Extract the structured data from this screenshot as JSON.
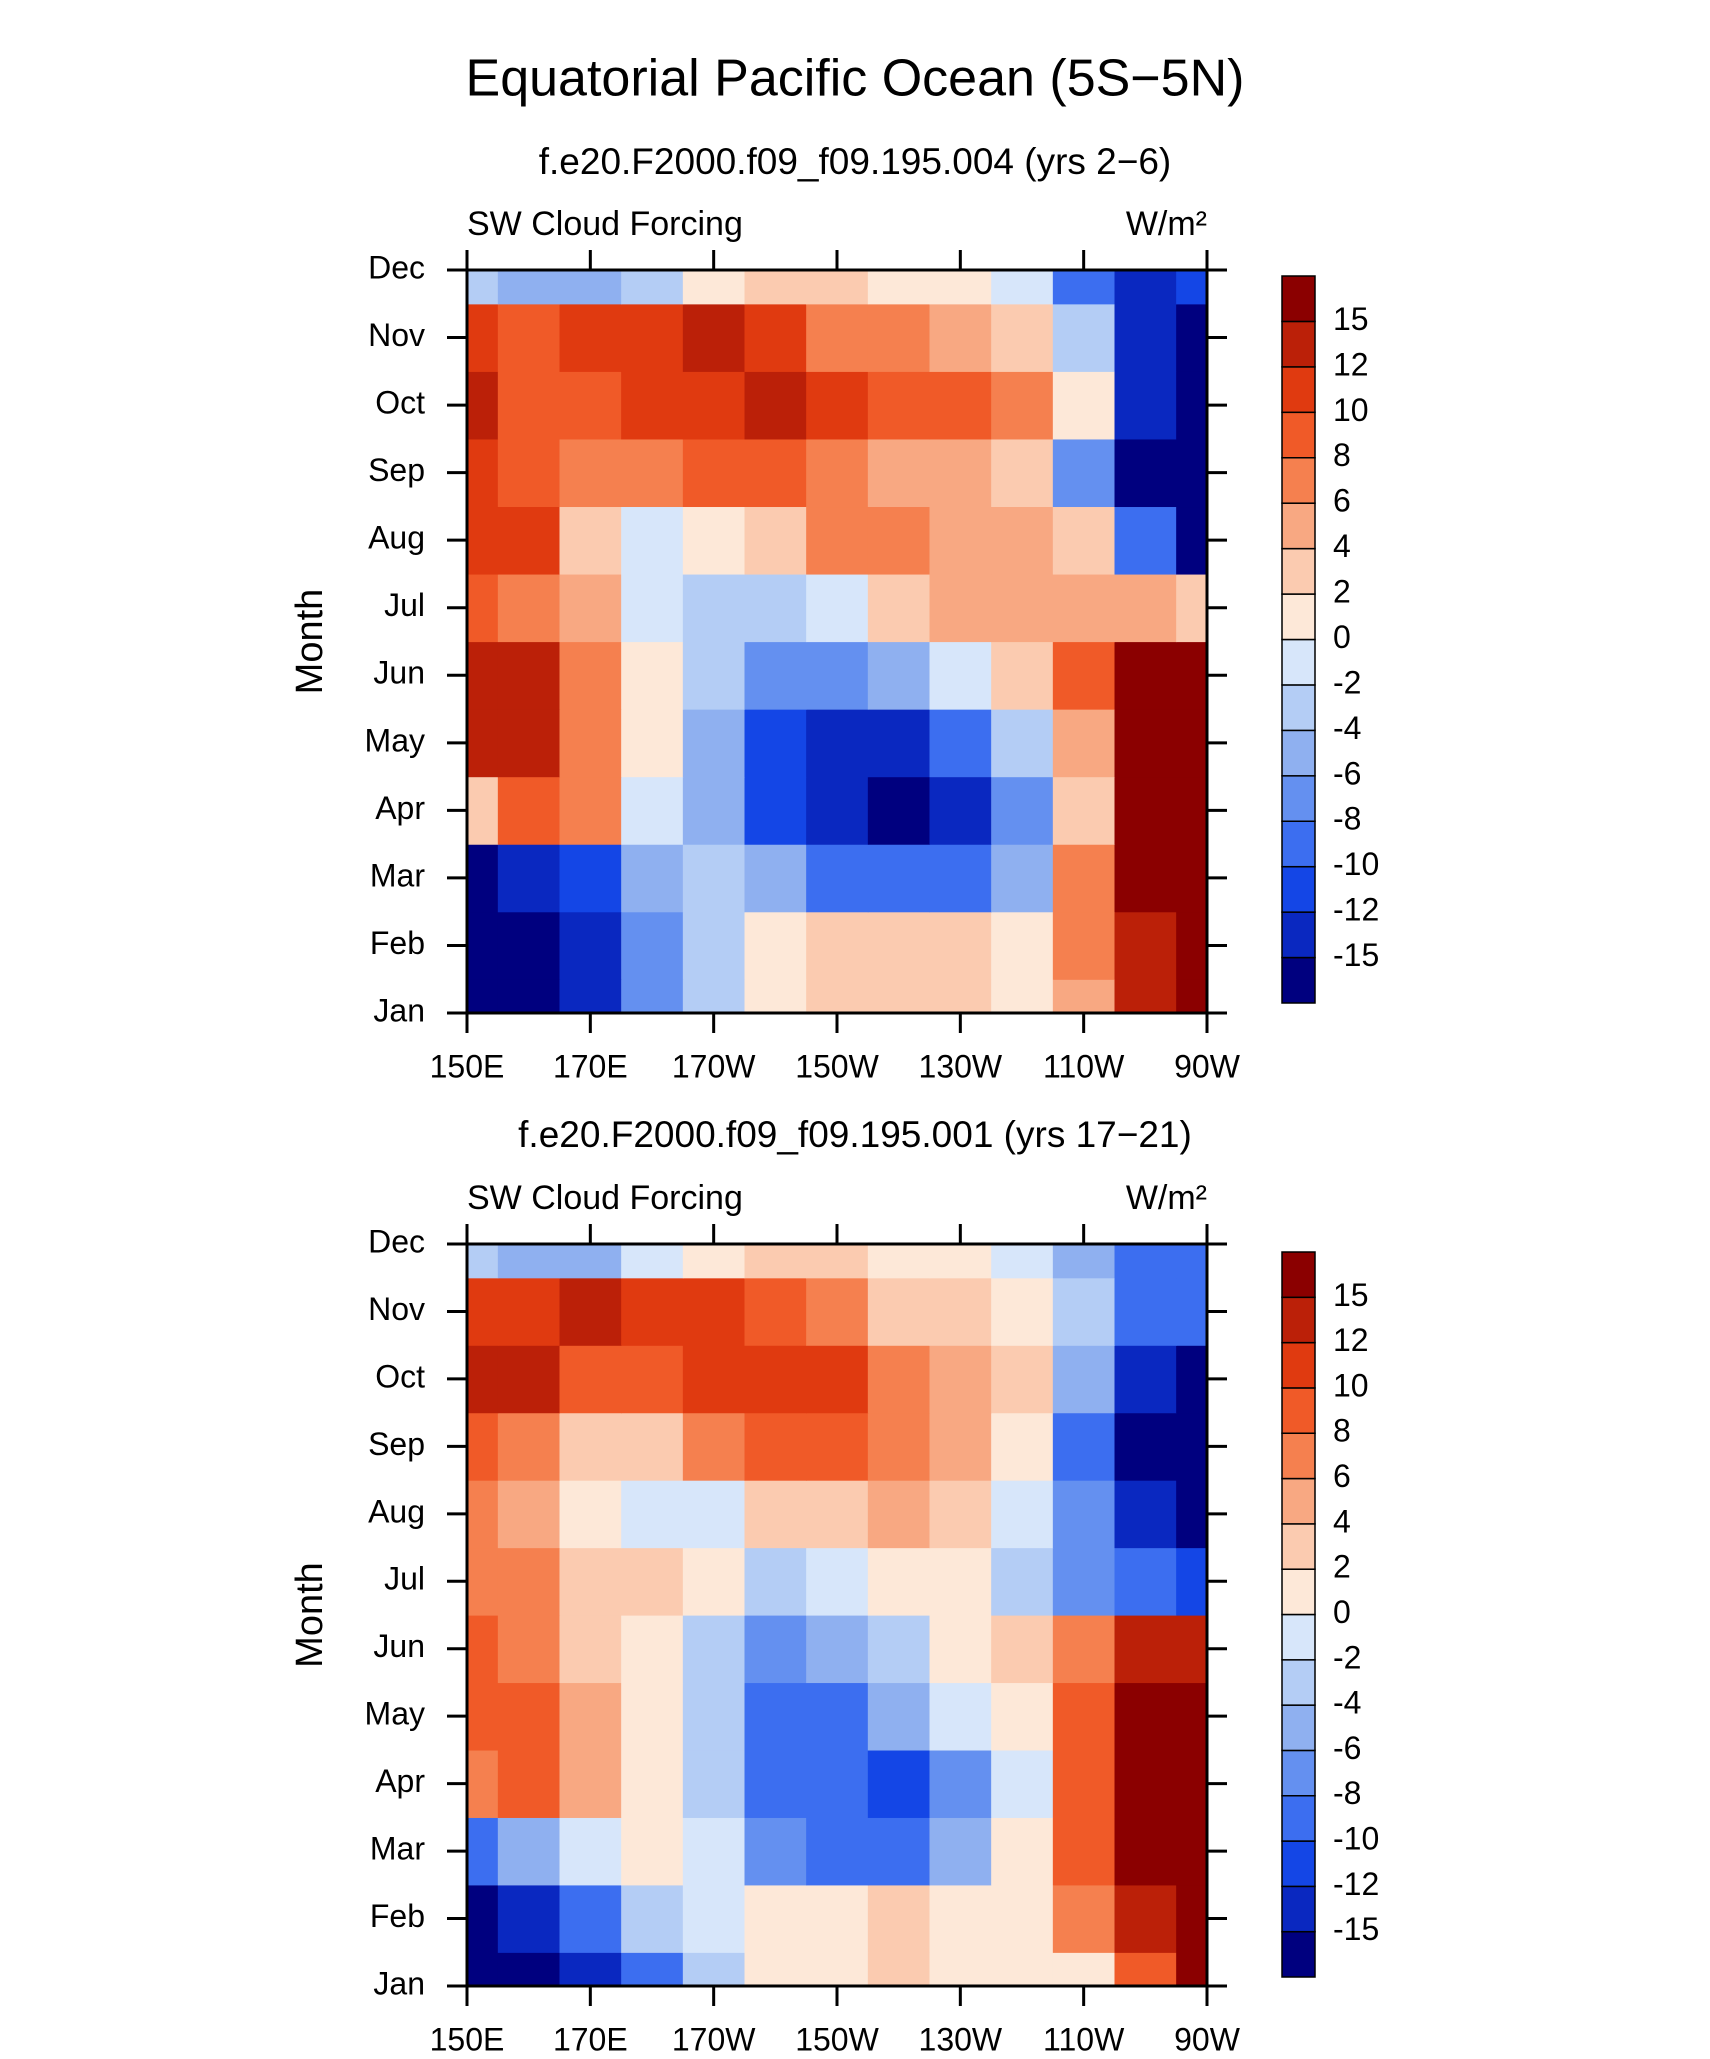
{
  "title": "Equatorial Pacific Ocean (5S−5N)",
  "chart_data": [
    {
      "type": "heatmap",
      "subtitle": "f.e20.F2000.f09_f09.195.004 (yrs 2−6)",
      "left_label": "SW Cloud Forcing",
      "right_label": "W/m²",
      "ylabel": "Month",
      "categories": [
        "Jan",
        "Feb",
        "Mar",
        "Apr",
        "May",
        "Jun",
        "Jul",
        "Aug",
        "Sep",
        "Oct",
        "Nov",
        "Dec"
      ],
      "x": [
        150,
        160,
        170,
        180,
        190,
        200,
        210,
        220,
        230,
        240,
        250,
        260,
        270
      ],
      "xlim": [
        150,
        270
      ],
      "xticks": [
        {
          "value": 150,
          "label": "150E"
        },
        {
          "value": 170,
          "label": "170E"
        },
        {
          "value": 190,
          "label": "170W"
        },
        {
          "value": 210,
          "label": "150W"
        },
        {
          "value": 230,
          "label": "130W"
        },
        {
          "value": 250,
          "label": "110W"
        },
        {
          "value": 270,
          "label": "90W"
        }
      ],
      "levels": [
        -15,
        -12,
        -10,
        -8,
        -6,
        -4,
        -2,
        0,
        2,
        4,
        6,
        8,
        10,
        12,
        15
      ],
      "colors": [
        "#00007f",
        "#0a28c0",
        "#1446e6",
        "#3c6ef0",
        "#6490f0",
        "#8fb0f0",
        "#b4cdf5",
        "#d7e6fa",
        "#fde8d8",
        "#fbcbb0",
        "#f8a882",
        "#f5804f",
        "#f05a28",
        "#e03a10",
        "#bb2008",
        "#8b0000"
      ],
      "z": [
        [
          -16,
          -16,
          -14,
          -8,
          -4,
          1,
          2,
          3,
          2,
          1,
          4,
          12,
          16
        ],
        [
          -16,
          -16,
          -13,
          -8,
          -4,
          1,
          2,
          3,
          2,
          1,
          6,
          14,
          16
        ],
        [
          -16,
          -15,
          -11,
          -5,
          -3,
          -6,
          -9,
          -10,
          -10,
          -6,
          6,
          16,
          16
        ],
        [
          2,
          8,
          6,
          -1,
          -5,
          -12,
          -14,
          -16,
          -13,
          -8,
          3,
          16,
          16
        ],
        [
          12,
          12,
          6,
          0,
          -5,
          -12,
          -14,
          -13,
          -9,
          -3,
          4,
          16,
          16
        ],
        [
          13,
          12,
          6,
          1,
          -4,
          -8,
          -8,
          -5,
          -2,
          3,
          9,
          15,
          16
        ],
        [
          8,
          6,
          4,
          -1,
          -3,
          -3,
          -1,
          2,
          4,
          4,
          5,
          4,
          3
        ],
        [
          11,
          10,
          3,
          -1,
          1,
          3,
          6,
          6,
          4,
          4,
          2,
          -10,
          -16
        ],
        [
          10,
          9,
          6,
          6,
          8,
          8,
          7,
          5,
          4,
          2,
          -8,
          -16,
          -16
        ],
        [
          14,
          8,
          9,
          10,
          10,
          12,
          10,
          9,
          8,
          6,
          0,
          -14,
          -16
        ],
        [
          10,
          9,
          10,
          11,
          12,
          10,
          7,
          6,
          5,
          3,
          -4,
          -14,
          -16
        ],
        [
          -3,
          -5,
          -6,
          -3,
          1,
          2,
          2,
          1,
          0,
          -2,
          -10,
          -14,
          -12
        ]
      ]
    },
    {
      "type": "heatmap",
      "subtitle": "f.e20.F2000.f09_f09.195.001 (yrs 17−21)",
      "left_label": "SW Cloud Forcing",
      "right_label": "W/m²",
      "ylabel": "Month",
      "categories": [
        "Jan",
        "Feb",
        "Mar",
        "Apr",
        "May",
        "Jun",
        "Jul",
        "Aug",
        "Sep",
        "Oct",
        "Nov",
        "Dec"
      ],
      "x": [
        150,
        160,
        170,
        180,
        190,
        200,
        210,
        220,
        230,
        240,
        250,
        260,
        270
      ],
      "xlim": [
        150,
        270
      ],
      "xticks": [
        {
          "value": 150,
          "label": "150E"
        },
        {
          "value": 170,
          "label": "170E"
        },
        {
          "value": 190,
          "label": "170W"
        },
        {
          "value": 210,
          "label": "150W"
        },
        {
          "value": 230,
          "label": "130W"
        },
        {
          "value": 250,
          "label": "110W"
        },
        {
          "value": 270,
          "label": "90W"
        }
      ],
      "levels": [
        -15,
        -12,
        -10,
        -8,
        -6,
        -4,
        -2,
        0,
        2,
        4,
        6,
        8,
        10,
        12,
        15
      ],
      "colors": [
        "#00007f",
        "#0a28c0",
        "#1446e6",
        "#3c6ef0",
        "#6490f0",
        "#8fb0f0",
        "#b4cdf5",
        "#d7e6fa",
        "#fde8d8",
        "#fbcbb0",
        "#f8a882",
        "#f5804f",
        "#f05a28",
        "#e03a10",
        "#bb2008",
        "#8b0000"
      ],
      "z": [
        [
          -16,
          -16,
          -14,
          -10,
          -4,
          1,
          1,
          2,
          1,
          0,
          1,
          8,
          16
        ],
        [
          -16,
          -14,
          -10,
          -4,
          -1,
          1,
          1,
          2,
          1,
          1,
          6,
          14,
          16
        ],
        [
          -10,
          -6,
          -1,
          1,
          -2,
          -8,
          -10,
          -9,
          -5,
          0,
          8,
          16,
          16
        ],
        [
          6,
          8,
          4,
          1,
          -4,
          -10,
          -10,
          -12,
          -8,
          -2,
          9,
          16,
          16
        ],
        [
          9,
          8,
          5,
          1,
          -3,
          -10,
          -10,
          -6,
          -2,
          1,
          8,
          16,
          16
        ],
        [
          8,
          6,
          2,
          0,
          -3,
          -8,
          -6,
          -3,
          0,
          2,
          6,
          12,
          14
        ],
        [
          7,
          6,
          3,
          2,
          0,
          -3,
          -2,
          0,
          0,
          -4,
          -7,
          -10,
          -12
        ],
        [
          6,
          4,
          1,
          -1,
          -1,
          2,
          3,
          4,
          2,
          -1,
          -8,
          -14,
          -16
        ],
        [
          9,
          6,
          3,
          2,
          6,
          8,
          8,
          7,
          4,
          0,
          -10,
          -16,
          -16
        ],
        [
          14,
          12,
          8,
          9,
          10,
          10,
          10,
          6,
          4,
          2,
          -6,
          -14,
          -16
        ],
        [
          11,
          11,
          12,
          11,
          10,
          8,
          6,
          3,
          2,
          0,
          -4,
          -10,
          -10
        ],
        [
          -4,
          -6,
          -5,
          -2,
          1,
          3,
          2,
          1,
          0,
          -2,
          -6,
          -10,
          -10
        ]
      ]
    }
  ]
}
